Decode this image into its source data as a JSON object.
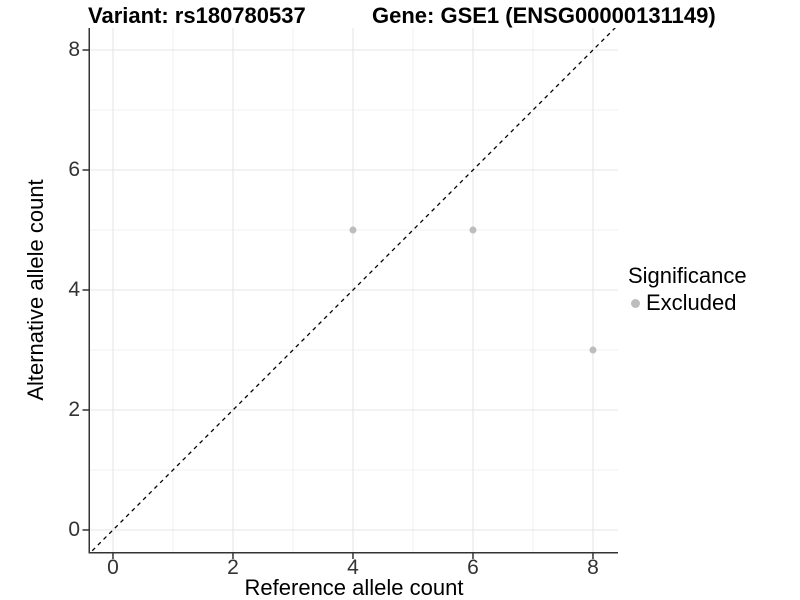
{
  "titles": {
    "left": "Variant: rs180780537",
    "right": "Gene: GSE1 (ENSG00000131149)"
  },
  "chart_data": {
    "type": "scatter",
    "xlabel": "Reference allele count",
    "ylabel": "Alternative allele count",
    "xlim": [
      -0.383,
      8.417
    ],
    "ylim": [
      -0.367,
      8.367
    ],
    "x_ticks": [
      0,
      2,
      4,
      6,
      8
    ],
    "y_ticks": [
      0,
      2,
      4,
      6,
      8
    ],
    "x_minor_ticks": [
      1,
      3,
      5,
      7
    ],
    "y_minor_ticks": [
      1,
      3,
      5,
      7
    ],
    "grid": true,
    "series": [
      {
        "name": "Excluded",
        "color": "#bdbdbd",
        "points": [
          [
            4,
            5
          ],
          [
            6,
            5
          ],
          [
            8,
            3
          ]
        ]
      }
    ],
    "reference_line": {
      "type": "identity",
      "slope": 1,
      "intercept": 0,
      "style": "dashed",
      "color": "#000000"
    },
    "legend": {
      "title": "Significance",
      "position": "right",
      "items": [
        {
          "label": "Excluded",
          "color": "#bdbdbd"
        }
      ]
    }
  },
  "colors": {
    "background": "#ffffff",
    "grid_major": "#e4e4e4",
    "grid_minor": "#f2f2f2",
    "axis_line": "#333333",
    "tick_mark": "#333333",
    "tick_label": "#333333",
    "point": "#bdbdbd"
  }
}
